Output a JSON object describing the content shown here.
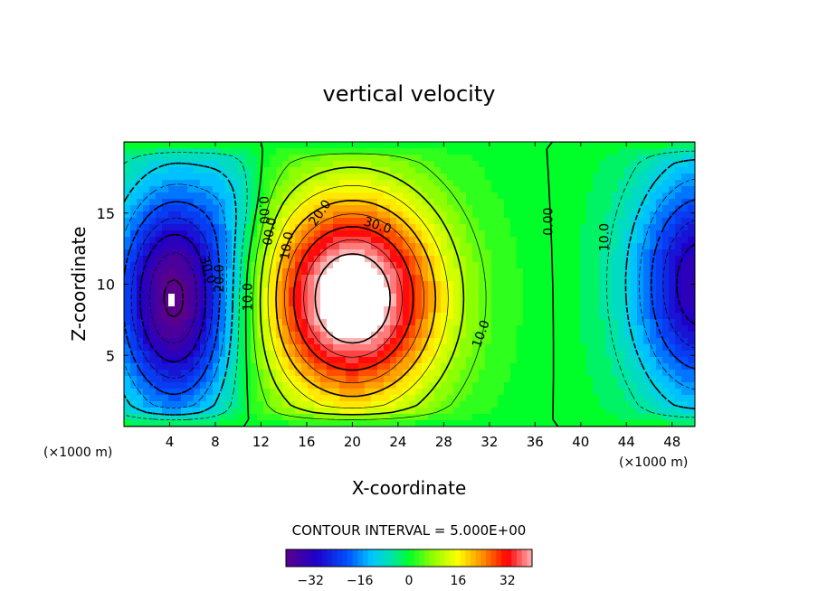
{
  "chart_data": {
    "type": "contour",
    "title": "vertical velocity",
    "xlabel": "X-coordinate",
    "ylabel": "Z-coordinate",
    "x_unit_label": "(×1000 m)",
    "x_unit_label_right": "(×1000 m)",
    "xlim": [
      0,
      50
    ],
    "ylim": [
      0,
      20
    ],
    "xticks": [
      4,
      8,
      12,
      16,
      20,
      24,
      28,
      32,
      36,
      40,
      44,
      48
    ],
    "yticks": [
      5,
      10,
      15
    ],
    "contour_interval_label": "CONTOUR INTERVAL = 5.000E+00",
    "contour_interval": 5,
    "color_range": [
      -40,
      40
    ],
    "colorbar_ticks": [
      -32,
      -16,
      0,
      16,
      32
    ],
    "colorbar_tick_labels": [
      "−32",
      "−16",
      "0",
      "16",
      "32"
    ],
    "contour_labels": [
      {
        "text": "0.00",
        "x": 12.2,
        "y": 15.2,
        "rotate": 88
      },
      {
        "text": "00.0",
        "x": 12.8,
        "y": 13.7,
        "rotate": -80
      },
      {
        "text": "10.0",
        "x": 14.3,
        "y": 12.7,
        "rotate": -80
      },
      {
        "text": "20.0",
        "x": 17.2,
        "y": 15.0,
        "rotate": -55
      },
      {
        "text": "30.0",
        "x": 22.2,
        "y": 14.1,
        "rotate": 18
      },
      {
        "text": "10.0",
        "x": 31.3,
        "y": 6.5,
        "rotate": -70
      },
      {
        "text": "0.00",
        "x": 37.2,
        "y": 14.4,
        "rotate": -90
      },
      {
        "text": "10.0",
        "x": 42.1,
        "y": 13.3,
        "rotate": -90
      },
      {
        "text": "20.0",
        "x": 8.4,
        "y": 10.4,
        "rotate": -90
      },
      {
        "text": "10.0",
        "x": 10.9,
        "y": 9.1,
        "rotate": -90
      },
      {
        "text": "30.0",
        "x": 7.3,
        "y": 11.0,
        "rotate": 72
      }
    ]
  }
}
